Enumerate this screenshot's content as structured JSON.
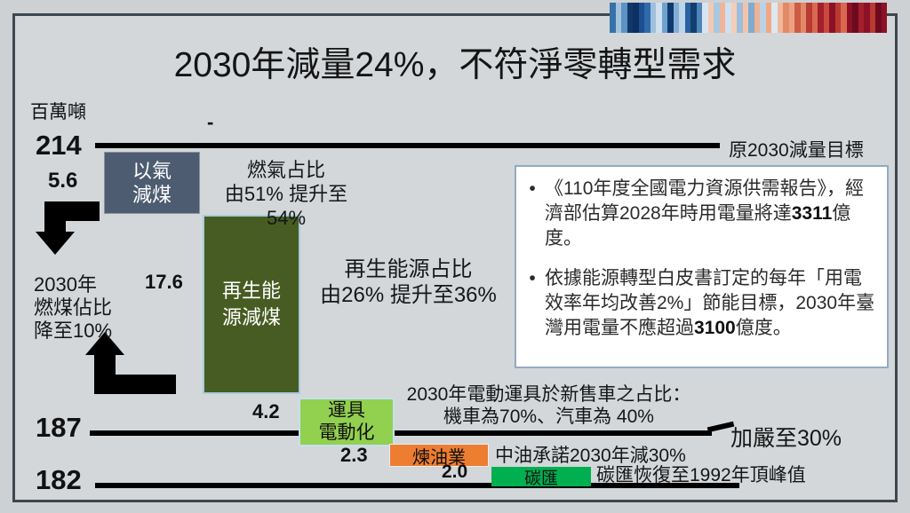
{
  "slide": {
    "title": "2030年減量24%，不符淨零轉型需求",
    "unit_label": "百萬噸",
    "dash": "-"
  },
  "chart_data": {
    "type": "waterfall",
    "title": "2030年減量24%，不符淨零轉型需求",
    "unit": "百萬噸",
    "start_value": 214,
    "end_value": 182,
    "levels": [
      214,
      187,
      182
    ],
    "steps": [
      {
        "name": "以氣減煤",
        "label_lines": [
          "以氣",
          "減煤"
        ],
        "value": "5.6",
        "numeric": 5.6,
        "color": "#4d5c70",
        "note_lines": [
          "燃氣占比",
          "由51% 提升至54%"
        ]
      },
      {
        "name": "再生能源減煤",
        "label_lines": [
          "再生能",
          "源減煤"
        ],
        "value": "17.6",
        "numeric": 17.6,
        "color": "#475c22",
        "note_lines": [
          "再生能源占比",
          "由26% 提升至36%"
        ]
      },
      {
        "name": "運具電動化",
        "label_lines": [
          "運具",
          "電動化"
        ],
        "value": "4.2",
        "numeric": 4.2,
        "color": "#92d050",
        "note_lines": [
          "2030年電動運具於新售車之占比：",
          "機車為70%、汽車為 40%"
        ]
      },
      {
        "name": "煉油業",
        "label_lines": [
          "煉油業"
        ],
        "value": "2.3",
        "numeric": 2.3,
        "color": "#ed7d31",
        "note_lines": [
          "中油承諾2030年減30%"
        ]
      },
      {
        "name": "碳匯",
        "label_lines": [
          "碳匯"
        ],
        "value": "2.0",
        "numeric": 2.0,
        "color": "#00b050",
        "note_lines": [
          "碳匯恢復至1992年頂峰值"
        ]
      }
    ],
    "reference_labels": {
      "top": "原2030減量目標",
      "mid": "加嚴至30%"
    },
    "coal_arrow_note_lines": [
      "2030年",
      "燃煤佔比",
      "降至10%"
    ],
    "legend_position": "none",
    "grid": false
  },
  "info_box": {
    "bullet_glyph": "•",
    "bullets": [
      {
        "pre": "《110年度全國電力資源供需報告》，經濟部估算2028年時用電量將達",
        "bold": "3311",
        "post": "億度。"
      },
      {
        "pre": "依據能源轉型白皮書訂定的每年「用電效率年均改善2%」節能目標，2030年臺灣用電量不應超過",
        "bold": "3100",
        "post": "億度。"
      }
    ]
  },
  "warming_stripes": {
    "name": "climate-warming-stripes",
    "colors": [
      "#3672a8",
      "#a3c3dd",
      "#5d93c4",
      "#12386b",
      "#0d2f61",
      "#1b4f8f",
      "#2f6bab",
      "#9fc0dc",
      "#cfe0ee",
      "#6ea2cc",
      "#0f3a70",
      "#83afd4",
      "#bdd5e8",
      "#2a62a3",
      "#11406f",
      "#4d85bb",
      "#d8e5f0",
      "#f2c9b4",
      "#a8c8e0",
      "#f0b49a",
      "#cfe0ee",
      "#f5cdb9",
      "#9dbfdb",
      "#f2c3ab",
      "#7fabd0",
      "#eeb294",
      "#bad2e6",
      "#f0a884",
      "#dde9f2",
      "#f2b79c",
      "#e28a68",
      "#eda182",
      "#cd5c45",
      "#e08a69",
      "#b93a32",
      "#d96850",
      "#a31f2c",
      "#c74a3c",
      "#8c1127",
      "#b93a32",
      "#d96850",
      "#8c1127",
      "#6d0a20",
      "#a31f2c",
      "#8c1127",
      "#b93a32",
      "#6d0a20",
      "#8c1127"
    ]
  },
  "colors": {
    "background": "#cdd1d4",
    "frame_border": "#3d474e",
    "level_line": "#000000",
    "info_box_border": "#92abc2",
    "box_gas_coal": "#4d5c70",
    "box_renewable": "#475c22",
    "box_ev": "#92d050",
    "box_refinery": "#ed7d31",
    "box_carbon_sink": "#00b050"
  }
}
